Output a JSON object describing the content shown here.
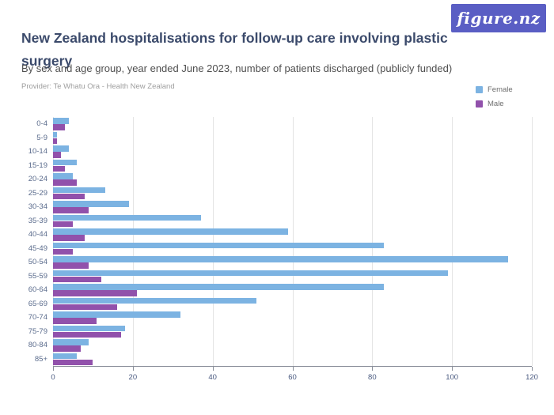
{
  "header": {
    "title": "New Zealand hospitalisations for follow-up care involving plastic surgery",
    "subtitle": "By sex and age group, year ended June 2023, number of patients discharged (publicly funded)",
    "provider": "Provider: Te Whatu Ora - Health New Zealand",
    "logo_text": "figure.nz"
  },
  "colors": {
    "female": "#7cb3e2",
    "male": "#9151ab",
    "logo_background": "#5a5ec4",
    "title_text": "#3b4a6b",
    "gridline": "#e4e4e4",
    "axis": "#8a8f9a",
    "axis_label": "#4a5a80"
  },
  "legend": {
    "position": "top-right",
    "items": [
      {
        "label": "Female",
        "color": "#7cb3e2"
      },
      {
        "label": "Male",
        "color": "#9151ab"
      }
    ]
  },
  "chart_data": {
    "type": "bar",
    "orientation": "horizontal",
    "title": "New Zealand hospitalisations for follow-up care involving plastic surgery",
    "subtitle": "By sex and age group, year ended June 2023, number of patients discharged (publicly funded)",
    "categories": [
      "0-4",
      "5-9",
      "10-14",
      "15-19",
      "20-24",
      "25-29",
      "30-34",
      "35-39",
      "40-44",
      "45-49",
      "50-54",
      "55-59",
      "60-64",
      "65-69",
      "70-74",
      "75-79",
      "80-84",
      "85+"
    ],
    "series": [
      {
        "name": "Female",
        "color": "#7cb3e2",
        "values": [
          4,
          1,
          4,
          6,
          5,
          13,
          19,
          37,
          59,
          83,
          114,
          99,
          83,
          51,
          32,
          18,
          9,
          6
        ]
      },
      {
        "name": "Male",
        "color": "#9151ab",
        "values": [
          3,
          1,
          2,
          3,
          6,
          8,
          9,
          5,
          8,
          5,
          9,
          12,
          21,
          16,
          11,
          17,
          7,
          10
        ]
      }
    ],
    "xlabel": "",
    "ylabel": "",
    "xlim": [
      0,
      120
    ],
    "xticks": [
      0,
      20,
      40,
      60,
      80,
      100,
      120
    ],
    "grid": true,
    "legend_position": "top-right"
  }
}
